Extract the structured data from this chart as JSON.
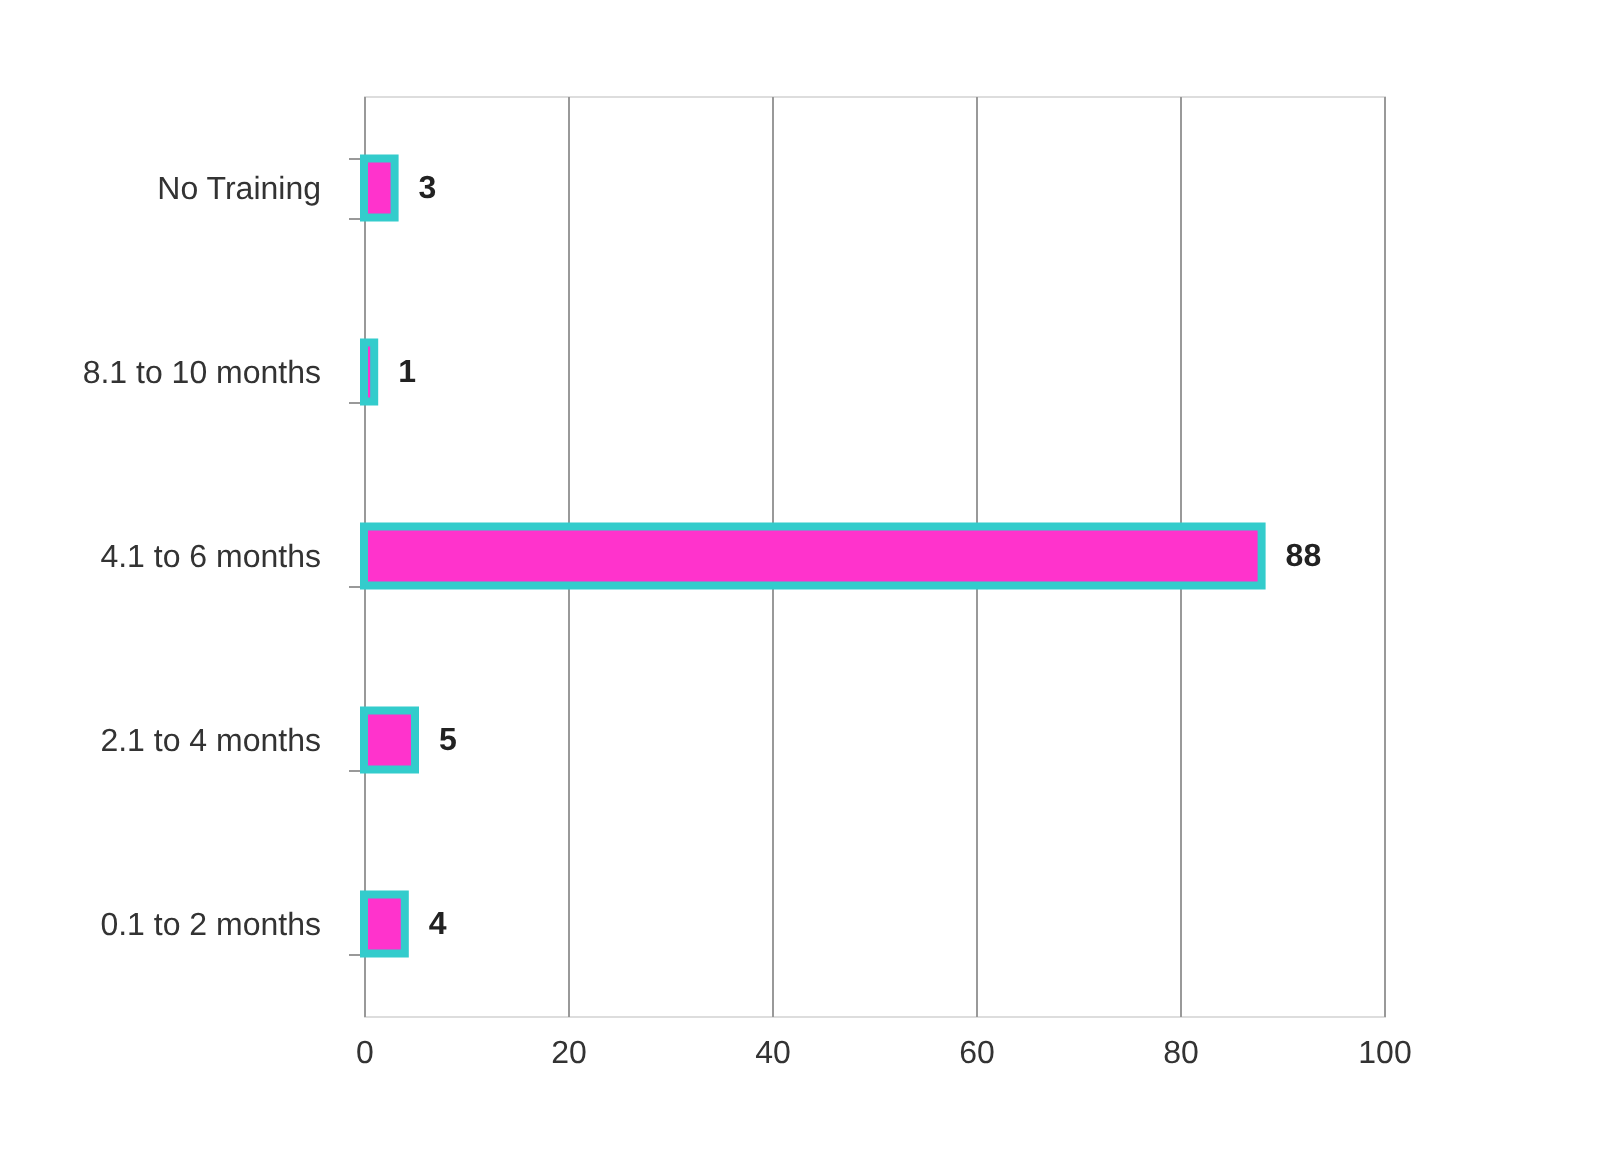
{
  "chart_data": {
    "type": "bar",
    "orientation": "horizontal",
    "categories": [
      "No Training",
      "8.1 to 10 months",
      "4.1 to 6 months",
      "2.1 to 4 months",
      "0.1 to 2 months"
    ],
    "values": [
      3,
      1,
      88,
      5,
      4
    ],
    "color": "#ff33cc",
    "xlim": [
      0,
      100
    ],
    "xticks": [
      0,
      20,
      40,
      60,
      80,
      100
    ],
    "grid": "x",
    "data_labels": true
  }
}
